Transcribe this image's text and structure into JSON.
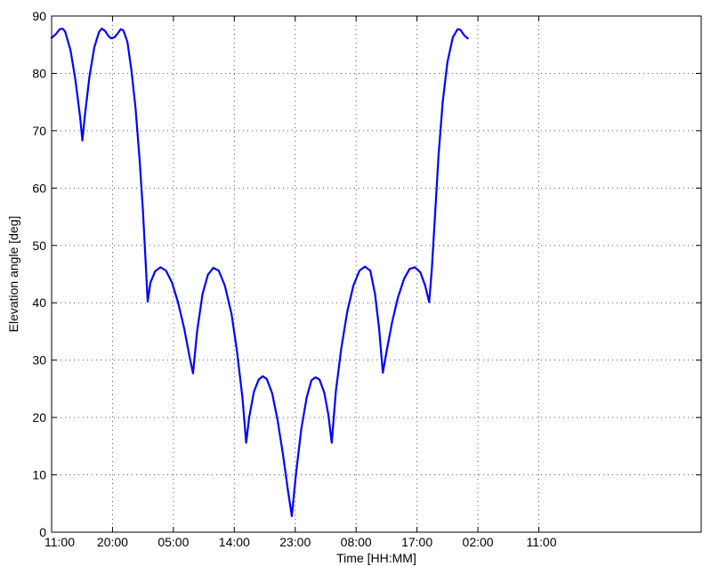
{
  "chart_data": {
    "type": "line",
    "title": "",
    "xlabel": "Time [HH:MM]",
    "ylabel": "Elevation angle [deg]",
    "ylim": [
      0,
      90
    ],
    "xlim": [
      0,
      96
    ],
    "x_unit": "hours",
    "xticks": [
      {
        "value": 0,
        "label": "11:00"
      },
      {
        "value": 9,
        "label": "20:00"
      },
      {
        "value": 18,
        "label": "05:00"
      },
      {
        "value": 27,
        "label": "14:00"
      },
      {
        "value": 36,
        "label": "23:00"
      },
      {
        "value": 45,
        "label": "08:00"
      },
      {
        "value": 54,
        "label": "17:00"
      },
      {
        "value": 63,
        "label": "02:00"
      },
      {
        "value": 72,
        "label": "11:00"
      }
    ],
    "yticks": [
      0,
      10,
      20,
      30,
      40,
      50,
      60,
      70,
      80,
      90
    ],
    "grid": true,
    "series": [
      {
        "name": "",
        "color": "#0000ff",
        "points": [
          [
            0.0,
            86.2
          ],
          [
            0.6,
            86.8
          ],
          [
            1.2,
            87.7
          ],
          [
            1.6,
            87.8
          ],
          [
            2.0,
            87.3
          ],
          [
            2.8,
            84.0
          ],
          [
            3.5,
            79.0
          ],
          [
            4.2,
            72.5
          ],
          [
            4.55,
            68.3
          ],
          [
            4.9,
            72.5
          ],
          [
            5.6,
            79.5
          ],
          [
            6.3,
            84.5
          ],
          [
            7.0,
            87.2
          ],
          [
            7.4,
            87.8
          ],
          [
            7.9,
            87.4
          ],
          [
            8.4,
            86.5
          ],
          [
            8.8,
            86.1
          ],
          [
            9.3,
            86.3
          ],
          [
            9.8,
            87.0
          ],
          [
            10.2,
            87.7
          ],
          [
            10.6,
            87.5
          ],
          [
            11.2,
            85.5
          ],
          [
            11.8,
            80.5
          ],
          [
            12.4,
            74.0
          ],
          [
            13.0,
            65.0
          ],
          [
            13.5,
            56.0
          ],
          [
            13.9,
            47.0
          ],
          [
            14.2,
            40.2
          ],
          [
            14.6,
            43.5
          ],
          [
            15.3,
            45.5
          ],
          [
            16.1,
            46.2
          ],
          [
            16.9,
            45.6
          ],
          [
            17.8,
            43.5
          ],
          [
            18.7,
            40.0
          ],
          [
            19.6,
            35.5
          ],
          [
            20.4,
            30.5
          ],
          [
            20.9,
            27.7
          ],
          [
            21.5,
            35.0
          ],
          [
            22.3,
            41.5
          ],
          [
            23.1,
            44.9
          ],
          [
            23.9,
            46.1
          ],
          [
            24.7,
            45.6
          ],
          [
            25.6,
            43.0
          ],
          [
            26.6,
            38.0
          ],
          [
            27.4,
            31.5
          ],
          [
            28.2,
            23.5
          ],
          [
            28.75,
            15.6
          ],
          [
            29.2,
            20.0
          ],
          [
            29.9,
            24.5
          ],
          [
            30.6,
            26.6
          ],
          [
            31.2,
            27.2
          ],
          [
            31.8,
            26.7
          ],
          [
            32.6,
            24.2
          ],
          [
            33.4,
            19.5
          ],
          [
            34.2,
            13.5
          ],
          [
            34.9,
            7.5
          ],
          [
            35.5,
            2.8
          ],
          [
            36.1,
            10.0
          ],
          [
            36.9,
            18.0
          ],
          [
            37.7,
            23.5
          ],
          [
            38.4,
            26.5
          ],
          [
            39.0,
            27.0
          ],
          [
            39.6,
            26.6
          ],
          [
            40.3,
            24.3
          ],
          [
            40.9,
            20.5
          ],
          [
            41.4,
            15.6
          ],
          [
            42.0,
            24.5
          ],
          [
            42.8,
            32.0
          ],
          [
            43.7,
            38.5
          ],
          [
            44.6,
            43.0
          ],
          [
            45.5,
            45.6
          ],
          [
            46.3,
            46.3
          ],
          [
            47.1,
            45.6
          ],
          [
            47.8,
            41.5
          ],
          [
            48.4,
            35.5
          ],
          [
            48.95,
            27.8
          ],
          [
            49.5,
            31.5
          ],
          [
            50.3,
            36.5
          ],
          [
            51.2,
            41.0
          ],
          [
            52.1,
            44.2
          ],
          [
            52.9,
            45.9
          ],
          [
            53.7,
            46.2
          ],
          [
            54.5,
            45.3
          ],
          [
            55.2,
            43.0
          ],
          [
            55.8,
            40.1
          ],
          [
            56.2,
            46.0
          ],
          [
            56.7,
            56.0
          ],
          [
            57.2,
            66.0
          ],
          [
            57.8,
            75.0
          ],
          [
            58.5,
            82.0
          ],
          [
            59.3,
            86.3
          ],
          [
            60.0,
            87.7
          ],
          [
            60.4,
            87.6
          ],
          [
            61.0,
            86.6
          ],
          [
            61.5,
            86.1
          ]
        ]
      }
    ]
  }
}
